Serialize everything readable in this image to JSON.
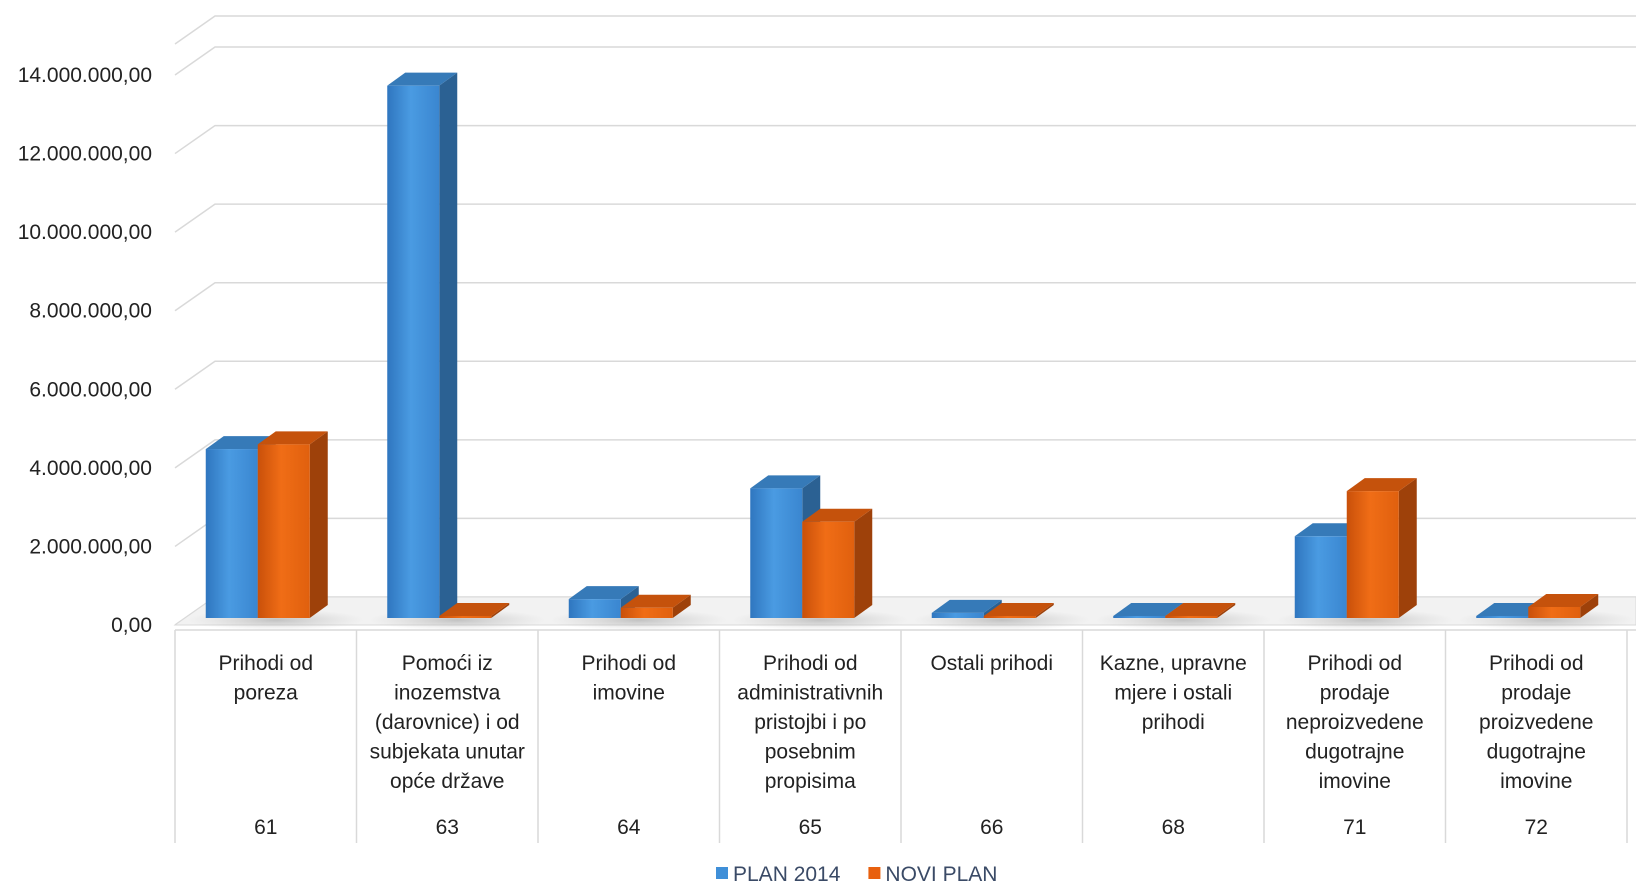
{
  "chart_data": {
    "type": "bar",
    "title": "",
    "xlabel": "",
    "ylabel": "",
    "ylim": [
      0,
      14000000
    ],
    "yticks": [
      "0,00",
      "2.000.000,00",
      "4.000.000,00",
      "6.000.000,00",
      "8.000.000,00",
      "10.000.000,00",
      "12.000.000,00",
      "14.000.000,00"
    ],
    "ytick_values": [
      0,
      2000000,
      4000000,
      6000000,
      8000000,
      10000000,
      12000000,
      14000000
    ],
    "grid": true,
    "legend_position": "bottom",
    "categories": [
      {
        "lines": [
          "Prihodi od",
          "poreza"
        ],
        "code": "61"
      },
      {
        "lines": [
          "Pomoći iz",
          "inozemstva",
          "(darovnice) i od",
          "subjekata unutar",
          "opće države"
        ],
        "code": "63"
      },
      {
        "lines": [
          "Prihodi od",
          "imovine"
        ],
        "code": "64"
      },
      {
        "lines": [
          "Prihodi od",
          "administrativnih",
          "pristojbi i po",
          "posebnim",
          "propisima"
        ],
        "code": "65"
      },
      {
        "lines": [
          "Ostali prihodi"
        ],
        "code": "66"
      },
      {
        "lines": [
          "Kazne, upravne",
          "mjere i ostali",
          "prihodi"
        ],
        "code": "68"
      },
      {
        "lines": [
          "Prihodi od",
          "prodaje",
          "neproizvedene",
          "dugotrajne",
          "imovine"
        ],
        "code": "71"
      },
      {
        "lines": [
          "Prihodi od",
          "prodaje",
          "proizvedene",
          "dugotrajne",
          "imovine"
        ],
        "code": "72"
      }
    ],
    "series": [
      {
        "name": "PLAN 2014",
        "color": "#3f8fd8",
        "values": [
          4300000,
          13550000,
          480000,
          3300000,
          130000,
          10000,
          2080000,
          30000
        ]
      },
      {
        "name": "NOVI PLAN",
        "color": "#e8600e",
        "values": [
          4420000,
          20000,
          260000,
          2450000,
          10000,
          40000,
          3230000,
          280000
        ]
      }
    ]
  }
}
